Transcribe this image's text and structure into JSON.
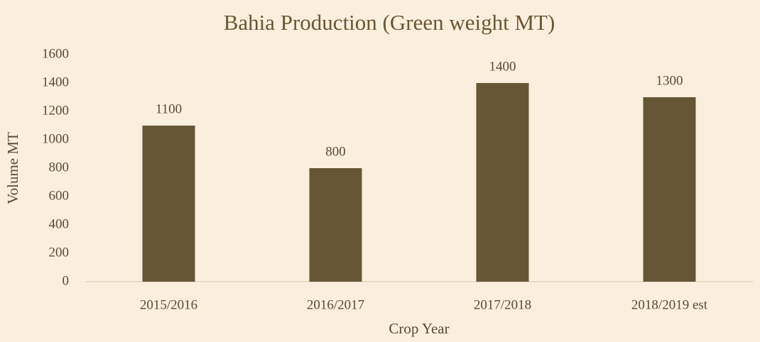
{
  "chart_data": {
    "type": "bar",
    "title": "Bahia Production (Green weight MT)",
    "x_label": "Crop Year",
    "y_label": "Volume MT",
    "categories": [
      "2015/2016",
      "2016/2017",
      "2017/2018",
      "2018/2019 est"
    ],
    "values": [
      1100,
      800,
      1400,
      1300
    ],
    "color": "#665636",
    "ylim": [
      0,
      1600
    ],
    "yticks": [
      0,
      200,
      400,
      600,
      800,
      1000,
      1200,
      1400,
      1600
    ],
    "grid": false,
    "data_labels": true
  }
}
